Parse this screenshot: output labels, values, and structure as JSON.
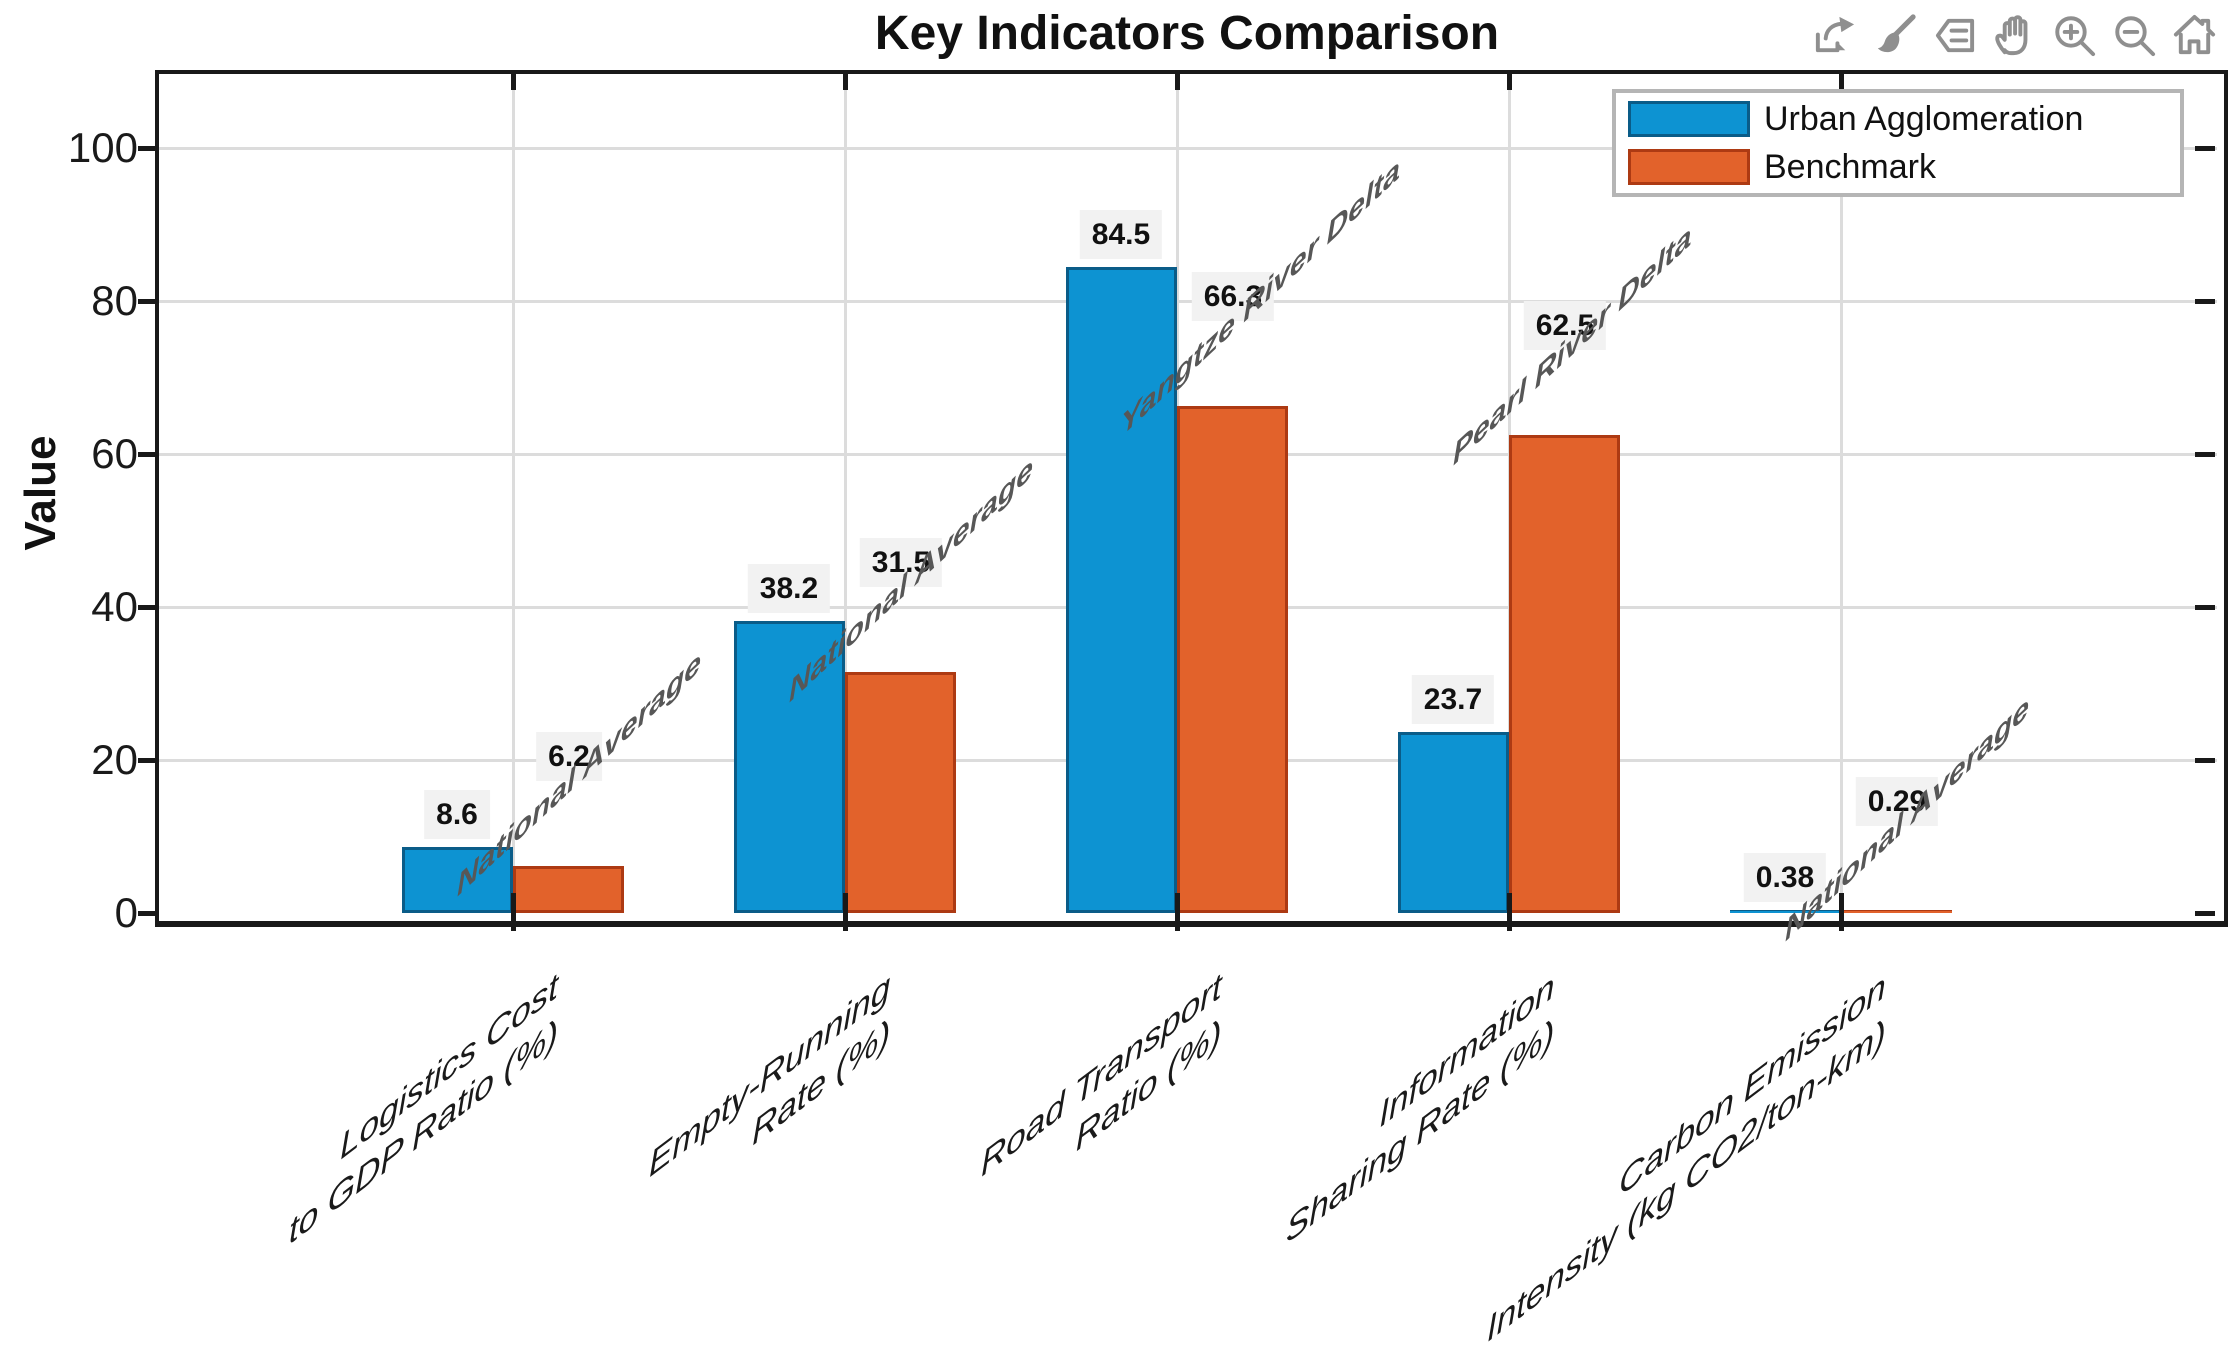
{
  "figure": {
    "title": "Key Indicators Comparison"
  },
  "toolbar": {
    "icons": [
      "export",
      "brush",
      "data-tips",
      "pan",
      "zoom-in",
      "zoom-out",
      "restore-view"
    ]
  },
  "chart_data": {
    "type": "bar",
    "title": "Key Indicators Comparison",
    "ylabel": "Value",
    "xlabel": "",
    "ylim": [
      0,
      110
    ],
    "yticks": [
      0,
      20,
      40,
      60,
      80,
      100
    ],
    "grid": true,
    "legend": {
      "position": "top-right",
      "entries": [
        "Urban Agglomeration",
        "Benchmark"
      ]
    },
    "categories": [
      "Logistics Cost\nto GDP Ratio (%)",
      "Empty-Running\nRate (%)",
      "Road Transport\nRatio (%)",
      "Information\nSharing Rate (%)",
      "Carbon Emission\nIntensity (kg CO2/ton-km)"
    ],
    "series": [
      {
        "name": "Urban Agglomeration",
        "color": "#0d93d2",
        "edge_color": "#0a5c88",
        "values": [
          8.6,
          38.2,
          84.5,
          23.7,
          0.38
        ],
        "value_labels": [
          "8.6",
          "38.2",
          "84.5",
          "23.7",
          "0.38"
        ]
      },
      {
        "name": "Benchmark",
        "color": "#e2622b",
        "edge_color": "#ad3a13",
        "values": [
          6.2,
          31.5,
          66.3,
          62.5,
          0.29
        ],
        "value_labels": [
          "6.2",
          "31.5",
          "66.3",
          "62.5",
          "0.29"
        ]
      }
    ],
    "annotations": [
      {
        "category_index": 0,
        "text": "National Average"
      },
      {
        "category_index": 1,
        "text": "National Average"
      },
      {
        "category_index": 2,
        "text": "Yangtze River Delta"
      },
      {
        "category_index": 3,
        "text": "Pearl River Delta"
      },
      {
        "category_index": 4,
        "text": "National Average"
      }
    ],
    "colors": {
      "grid": "#dcdcdc",
      "axis": "#191919",
      "annotation_text": "#575757",
      "value_label_bg": "#f2f2f2",
      "legend_border": "#b5b5b5"
    }
  }
}
